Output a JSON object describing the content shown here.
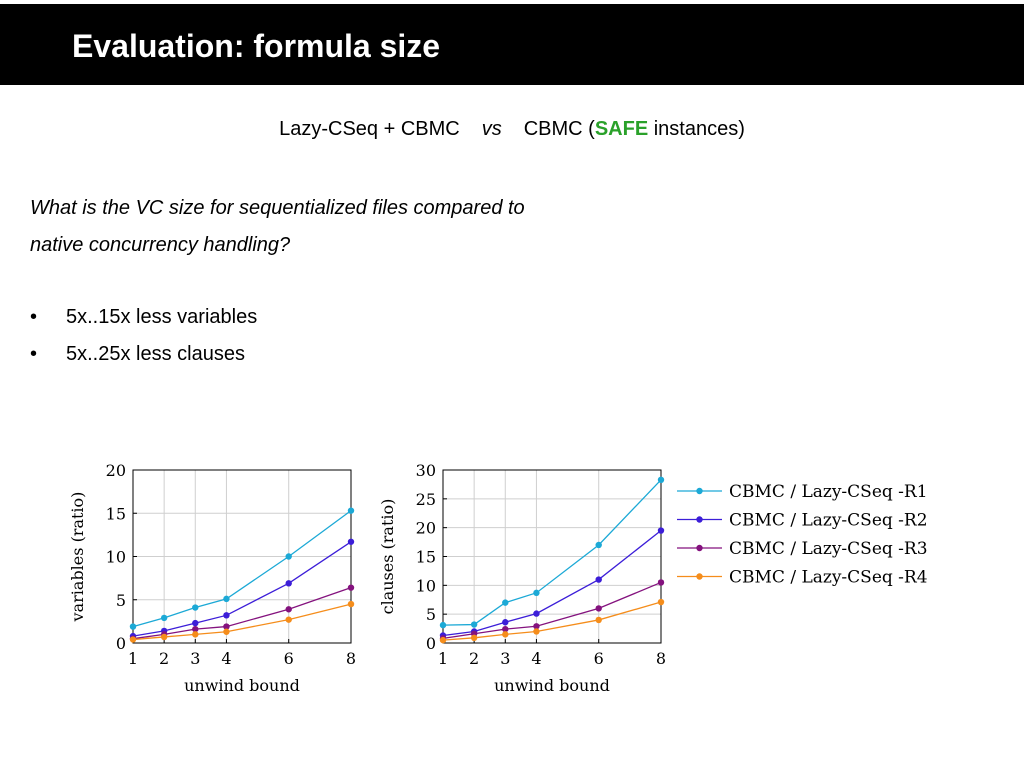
{
  "slide": {
    "title": "Evaluation: formula size",
    "subtitle": {
      "part1": "Lazy-CSeq + CBMC",
      "vs": "vs",
      "part2": "CBMC (",
      "safe": "SAFE",
      "part3": " instances)"
    },
    "question_line1": "What is the VC size for sequentialized files compared to",
    "question_line2": "native concurrency handling?",
    "bullets": [
      "5x..15x less variables",
      "5x..25x less clauses"
    ]
  },
  "chart_data": [
    {
      "type": "line",
      "xlabel": "unwind bound",
      "ylabel": "variables (ratio)",
      "x": [
        1,
        2,
        3,
        4,
        6,
        8
      ],
      "xticks": [
        1,
        2,
        3,
        4,
        6,
        8
      ],
      "yticks": [
        0,
        5,
        10,
        15,
        20
      ],
      "xlim": [
        1,
        8
      ],
      "ylim": [
        0,
        20
      ],
      "grid": true,
      "series": [
        {
          "name": "CBMC / Lazy-CSeq -R1",
          "color": "#1ca9d6",
          "values": [
            1.9,
            2.9,
            4.1,
            5.1,
            10.0,
            15.3
          ]
        },
        {
          "name": "CBMC / Lazy-CSeq -R2",
          "color": "#3c1ed8",
          "values": [
            0.8,
            1.4,
            2.3,
            3.2,
            6.9,
            11.7
          ]
        },
        {
          "name": "CBMC / Lazy-CSeq -R3",
          "color": "#84127e",
          "values": [
            0.5,
            1.0,
            1.6,
            1.9,
            3.9,
            6.4
          ]
        },
        {
          "name": "CBMC / Lazy-CSeq -R4",
          "color": "#f58d1b",
          "values": [
            0.4,
            0.7,
            1.0,
            1.3,
            2.7,
            4.5
          ]
        }
      ]
    },
    {
      "type": "line",
      "xlabel": "unwind bound",
      "ylabel": "clauses (ratio)",
      "x": [
        1,
        2,
        3,
        4,
        6,
        8
      ],
      "xticks": [
        1,
        2,
        3,
        4,
        6,
        8
      ],
      "yticks": [
        0,
        5,
        10,
        15,
        20,
        25,
        30
      ],
      "xlim": [
        1,
        8
      ],
      "ylim": [
        0,
        30
      ],
      "grid": true,
      "legend": "right",
      "series": [
        {
          "name": "CBMC / Lazy-CSeq -R1",
          "color": "#1ca9d6",
          "values": [
            3.1,
            3.2,
            7.0,
            8.7,
            17.0,
            28.3
          ]
        },
        {
          "name": "CBMC / Lazy-CSeq -R2",
          "color": "#3c1ed8",
          "values": [
            1.3,
            2.0,
            3.6,
            5.1,
            11.0,
            19.5
          ]
        },
        {
          "name": "CBMC / Lazy-CSeq -R3",
          "color": "#84127e",
          "values": [
            0.8,
            1.6,
            2.4,
            2.9,
            6.0,
            10.5
          ]
        },
        {
          "name": "CBMC / Lazy-CSeq -R4",
          "color": "#f58d1b",
          "values": [
            0.5,
            0.9,
            1.5,
            2.0,
            4.0,
            7.1
          ]
        }
      ]
    }
  ]
}
